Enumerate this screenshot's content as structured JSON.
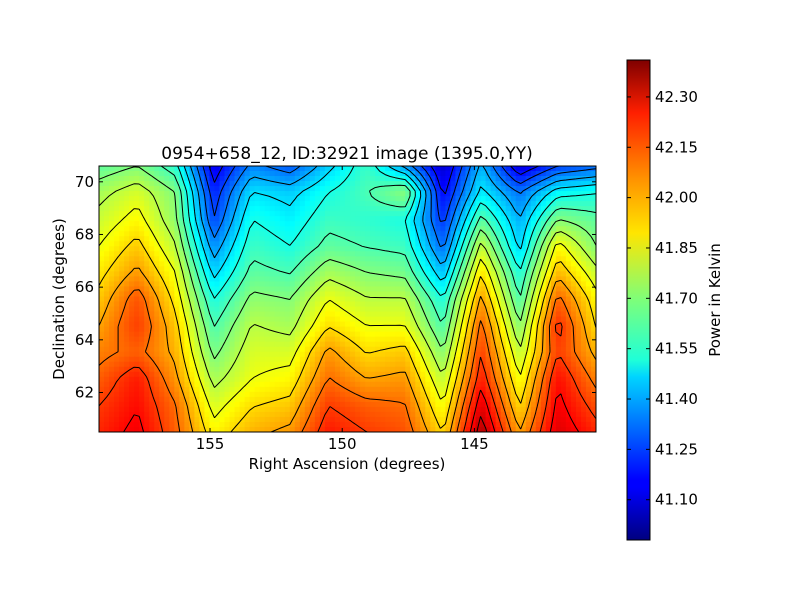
{
  "chart_data": {
    "type": "heatmap",
    "title": "0954+658_12, ID:32921 image (1395.0,YY)",
    "xlabel": "Right Ascension (degrees)",
    "ylabel": "Declination (degrees)",
    "xlim": [
      159.2,
      140.4
    ],
    "ylim": [
      60.5,
      70.6
    ],
    "x_ticks": [
      155,
      150,
      145
    ],
    "x_tick_labels": [
      "155",
      "150",
      "145"
    ],
    "y_ticks": [
      62,
      64,
      66,
      68,
      70
    ],
    "y_tick_labels": [
      "62",
      "64",
      "66",
      "68",
      "70"
    ],
    "x_inverted": true,
    "contours": true,
    "colormap": "jet",
    "colorbar": {
      "label": "Power in Kelvin",
      "range": [
        40.98,
        42.41
      ],
      "ticks": [
        41.1,
        41.25,
        41.4,
        41.55,
        41.7,
        41.85,
        42.0,
        42.15,
        42.3
      ],
      "tick_labels": [
        "41.10",
        "41.25",
        "41.40",
        "41.55",
        "41.70",
        "41.85",
        "42.00",
        "42.15",
        "42.30"
      ]
    },
    "grid": {
      "dec": [
        70.5,
        69.5,
        68.5,
        67.5,
        66.5,
        65.5,
        64.5,
        63.5,
        62.5,
        61.5,
        60.5
      ],
      "ra": [
        158.8,
        157.4,
        156.0,
        154.6,
        153.2,
        151.8,
        150.4,
        149.0,
        147.6,
        146.2,
        144.8,
        143.4,
        142.0,
        140.6
      ],
      "values": [
        [
          41.65,
          41.7,
          41.58,
          41.12,
          41.35,
          41.28,
          41.45,
          41.6,
          41.38,
          41.08,
          41.42,
          41.1,
          41.25,
          41.3
        ],
        [
          41.75,
          41.82,
          41.7,
          41.2,
          41.48,
          41.45,
          41.55,
          41.62,
          41.72,
          41.15,
          41.5,
          41.32,
          41.52,
          41.55
        ],
        [
          41.8,
          41.88,
          41.72,
          41.25,
          41.55,
          41.5,
          41.6,
          41.58,
          41.55,
          41.22,
          41.65,
          41.4,
          41.7,
          41.65
        ],
        [
          41.85,
          41.95,
          41.78,
          41.35,
          41.6,
          41.55,
          41.65,
          41.62,
          41.6,
          41.3,
          41.8,
          41.45,
          41.88,
          41.7
        ],
        [
          41.9,
          42.02,
          41.85,
          41.45,
          41.65,
          41.62,
          41.75,
          41.7,
          41.68,
          41.42,
          41.92,
          41.55,
          41.98,
          41.8
        ],
        [
          41.95,
          42.12,
          41.9,
          41.55,
          41.72,
          41.7,
          41.85,
          41.78,
          41.78,
          41.55,
          42.02,
          41.62,
          42.1,
          41.88
        ],
        [
          42.0,
          42.15,
          41.95,
          41.62,
          41.78,
          41.75,
          41.92,
          41.85,
          41.85,
          41.62,
          42.1,
          41.7,
          42.18,
          41.92
        ],
        [
          42.05,
          42.1,
          41.98,
          41.68,
          41.82,
          41.82,
          42.02,
          41.92,
          41.95,
          41.7,
          42.15,
          41.78,
          42.15,
          41.98
        ],
        [
          42.1,
          42.2,
          42.02,
          41.75,
          41.85,
          41.88,
          42.08,
          42.0,
          42.02,
          41.78,
          42.2,
          41.85,
          42.22,
          42.05
        ],
        [
          42.15,
          42.22,
          42.08,
          41.82,
          41.92,
          41.95,
          42.15,
          42.1,
          42.08,
          41.85,
          42.28,
          41.92,
          42.25,
          42.12
        ],
        [
          42.18,
          42.25,
          42.1,
          41.88,
          41.98,
          42.02,
          42.2,
          42.15,
          42.12,
          41.92,
          42.35,
          42.0,
          42.28,
          42.18
        ]
      ]
    }
  }
}
